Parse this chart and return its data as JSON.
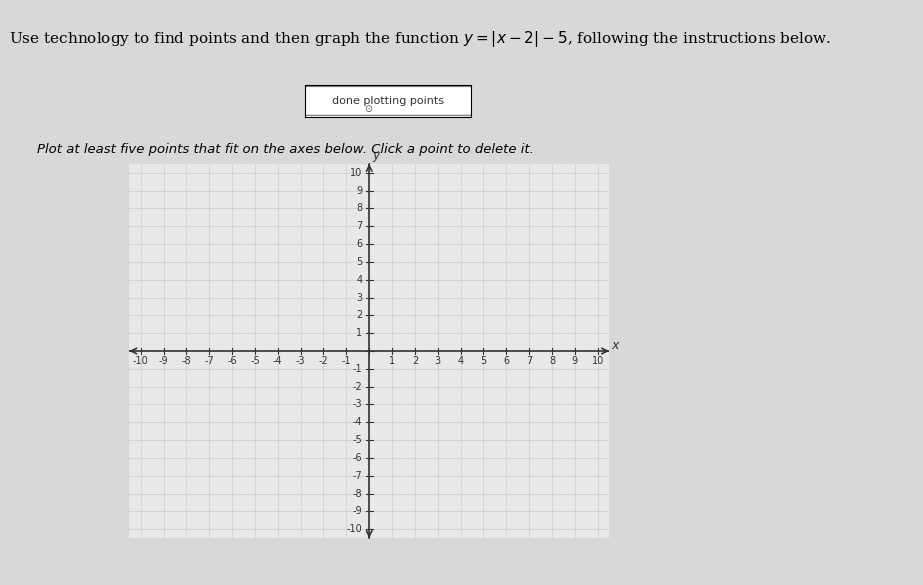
{
  "title": "Use technology to find points and then graph the function $y = |x - 2| - 5$, following the instructions below.",
  "button_text": "done plotting points",
  "instruction_text": "Plot at least five points that fit on the axes below. Click a point to delete it.",
  "xlim": [
    -10,
    10
  ],
  "ylim": [
    -10,
    10
  ],
  "xticks": [
    -10,
    -9,
    -8,
    -7,
    -6,
    -5,
    -4,
    -3,
    -2,
    -1,
    0,
    1,
    2,
    3,
    4,
    5,
    6,
    7,
    8,
    9,
    10
  ],
  "yticks": [
    -10,
    -9,
    -8,
    -7,
    -6,
    -5,
    -4,
    -3,
    -2,
    -1,
    0,
    1,
    2,
    3,
    4,
    5,
    6,
    7,
    8,
    9,
    10
  ],
  "grid_color": "#cccccc",
  "axis_color": "#333333",
  "background_color": "#f0f0f0",
  "outer_background": "#e8e8e8",
  "tick_label_fontsize": 7,
  "xlabel": "x",
  "ylabel": "y"
}
